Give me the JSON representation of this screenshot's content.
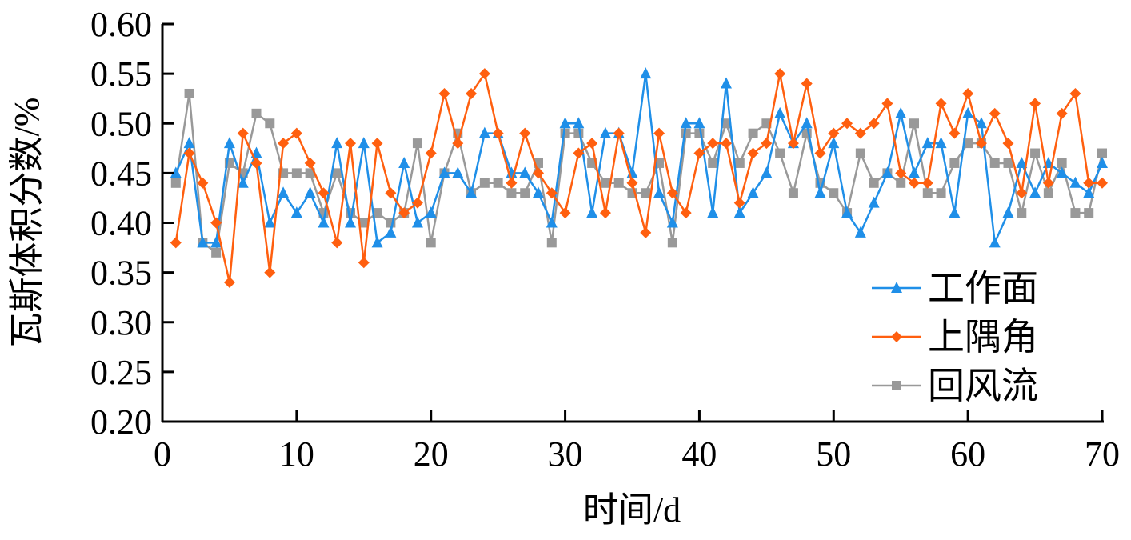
{
  "chart_data": {
    "type": "line",
    "xlabel": "时间/d",
    "ylabel": "瓦斯体积分数/%",
    "xlim": [
      0,
      70
    ],
    "ylim": [
      0.2,
      0.6
    ],
    "xticks": [
      "0",
      "10",
      "20",
      "30",
      "40",
      "50",
      "60",
      "70"
    ],
    "yticks": [
      "0.20",
      "0.25",
      "0.30",
      "0.35",
      "0.40",
      "0.45",
      "0.50",
      "0.55",
      "0.60"
    ],
    "grid": false,
    "legend_position": "bottom-right",
    "x": [
      1,
      2,
      3,
      4,
      5,
      6,
      7,
      8,
      9,
      10,
      11,
      12,
      13,
      14,
      15,
      16,
      17,
      18,
      19,
      20,
      21,
      22,
      23,
      24,
      25,
      26,
      27,
      28,
      29,
      30,
      31,
      32,
      33,
      34,
      35,
      36,
      37,
      38,
      39,
      40,
      41,
      42,
      43,
      44,
      45,
      46,
      47,
      48,
      49,
      50,
      51,
      52,
      53,
      54,
      55,
      56,
      57,
      58,
      59,
      60,
      61,
      62,
      63,
      64,
      65,
      66,
      67,
      68,
      69,
      70
    ],
    "series": [
      {
        "name": "工作面",
        "color": "#1f8fe8",
        "marker": "triangle",
        "values": [
          0.45,
          0.48,
          0.38,
          0.38,
          0.48,
          0.44,
          0.47,
          0.4,
          0.43,
          0.41,
          0.43,
          0.4,
          0.48,
          0.4,
          0.48,
          0.38,
          0.39,
          0.46,
          0.4,
          0.41,
          0.45,
          0.45,
          0.43,
          0.49,
          0.49,
          0.45,
          0.45,
          0.43,
          0.4,
          0.5,
          0.5,
          0.41,
          0.49,
          0.49,
          0.45,
          0.55,
          0.43,
          0.4,
          0.5,
          0.5,
          0.41,
          0.54,
          0.41,
          0.43,
          0.45,
          0.51,
          0.48,
          0.5,
          0.43,
          0.48,
          0.41,
          0.39,
          0.42,
          0.45,
          0.51,
          0.45,
          0.48,
          0.48,
          0.41,
          0.51,
          0.5,
          0.38,
          0.41,
          0.46,
          0.43,
          0.46,
          0.45,
          0.44,
          0.43,
          0.46
        ]
      },
      {
        "name": "上隅角",
        "color": "#ff5f0f",
        "marker": "diamond",
        "values": [
          0.38,
          0.47,
          0.44,
          0.4,
          0.34,
          0.49,
          0.46,
          0.35,
          0.48,
          0.49,
          0.46,
          0.43,
          0.38,
          0.48,
          0.36,
          0.48,
          0.43,
          0.41,
          0.42,
          0.47,
          0.53,
          0.48,
          0.53,
          0.55,
          0.49,
          0.44,
          0.49,
          0.45,
          0.43,
          0.41,
          0.47,
          0.48,
          0.41,
          0.49,
          0.44,
          0.39,
          0.49,
          0.43,
          0.41,
          0.47,
          0.48,
          0.48,
          0.42,
          0.47,
          0.48,
          0.55,
          0.48,
          0.54,
          0.47,
          0.49,
          0.5,
          0.49,
          0.5,
          0.52,
          0.45,
          0.44,
          0.44,
          0.52,
          0.49,
          0.53,
          0.48,
          0.51,
          0.48,
          0.43,
          0.52,
          0.44,
          0.51,
          0.53,
          0.44,
          0.44
        ]
      },
      {
        "name": "回风流",
        "color": "#999999",
        "marker": "square",
        "values": [
          0.44,
          0.53,
          0.38,
          0.37,
          0.46,
          0.45,
          0.51,
          0.5,
          0.45,
          0.45,
          0.45,
          0.41,
          0.45,
          0.41,
          0.4,
          0.41,
          0.4,
          0.41,
          0.48,
          0.38,
          0.45,
          0.49,
          0.43,
          0.44,
          0.44,
          0.43,
          0.43,
          0.46,
          0.38,
          0.49,
          0.49,
          0.46,
          0.44,
          0.44,
          0.43,
          0.43,
          0.46,
          0.38,
          0.49,
          0.49,
          0.46,
          0.5,
          0.46,
          0.49,
          0.5,
          0.47,
          0.43,
          0.49,
          0.44,
          0.43,
          0.41,
          0.47,
          0.44,
          0.45,
          0.44,
          0.5,
          0.43,
          0.43,
          0.46,
          0.48,
          0.48,
          0.46,
          0.46,
          0.41,
          0.47,
          0.43,
          0.46,
          0.41,
          0.41,
          0.47
        ]
      }
    ]
  }
}
